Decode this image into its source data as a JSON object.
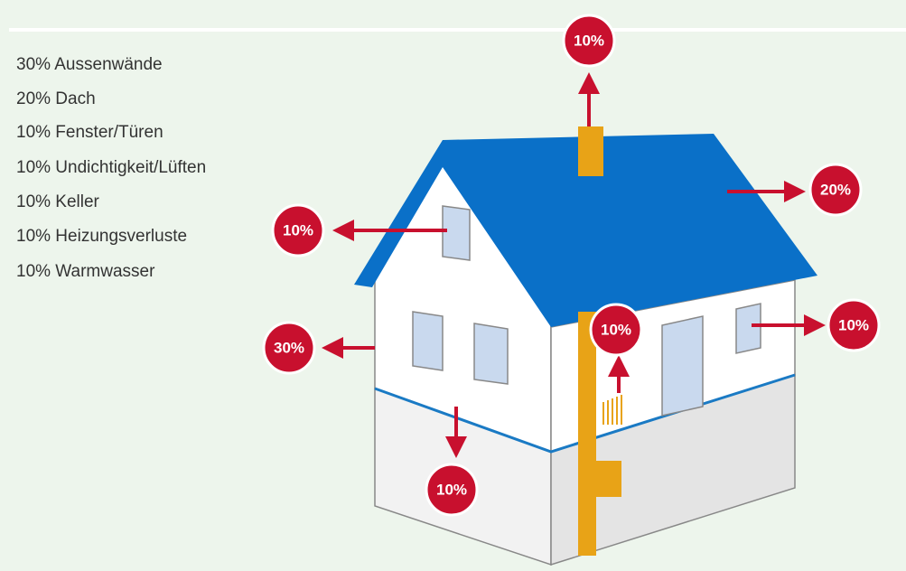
{
  "legend": [
    "30% Aussenwände",
    "20% Dach",
    "10% Fenster/Türen",
    "10% Undichtigkeit/Lüften",
    "10% Keller",
    "10% Heizungsverluste",
    "10% Warmwasser"
  ],
  "badges": {
    "chimney": "10%",
    "roof": "20%",
    "window_left": "10%",
    "wall": "30%",
    "window_right": "10%",
    "heating": "10%",
    "basement": "10%"
  }
}
